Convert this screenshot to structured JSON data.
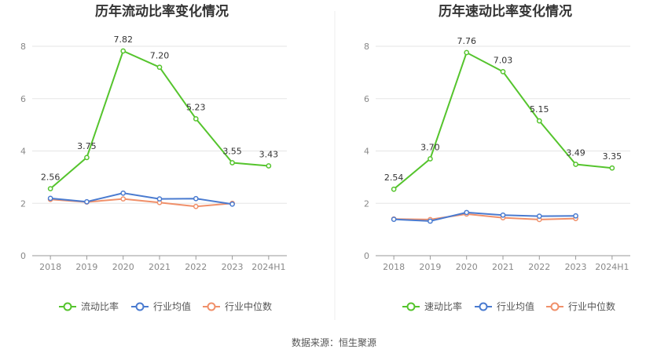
{
  "colors": {
    "series1": "#55c42d",
    "series2": "#4a7bd0",
    "series3": "#f0906a",
    "grid": "#e5e5e5",
    "axis": "#999999"
  },
  "source": "数据来源：恒生聚源",
  "chart_data": [
    {
      "type": "line",
      "title": "历年流动比率变化情况",
      "categories": [
        "2018",
        "2019",
        "2020",
        "2021",
        "2022",
        "2023",
        "2024H1"
      ],
      "ylim": [
        0,
        8
      ],
      "yticks": [
        0,
        2,
        4,
        6,
        8
      ],
      "grid": true,
      "legend_position": "bottom",
      "series": [
        {
          "name": "流动比率",
          "values": [
            2.56,
            3.75,
            7.82,
            7.2,
            5.23,
            3.55,
            3.43
          ],
          "labels": [
            "2.56",
            "3.75",
            "7.82",
            "7.20",
            "5.23",
            "3.55",
            "3.43"
          ],
          "color": "#55c42d"
        },
        {
          "name": "行业均值",
          "values": [
            2.19,
            2.06,
            2.39,
            2.17,
            2.18,
            1.97,
            null
          ],
          "color": "#4a7bd0"
        },
        {
          "name": "行业中位数",
          "values": [
            2.15,
            2.05,
            2.17,
            2.03,
            1.88,
            2.0,
            null
          ],
          "color": "#f0906a"
        }
      ]
    },
    {
      "type": "line",
      "title": "历年速动比率变化情况",
      "categories": [
        "2018",
        "2019",
        "2020",
        "2021",
        "2022",
        "2023",
        "2024H1"
      ],
      "ylim": [
        0,
        8
      ],
      "yticks": [
        0,
        2,
        4,
        6,
        8
      ],
      "grid": true,
      "legend_position": "bottom",
      "series": [
        {
          "name": "速动比率",
          "values": [
            2.54,
            3.7,
            7.76,
            7.03,
            5.15,
            3.49,
            3.35
          ],
          "labels": [
            "2.54",
            "3.70",
            "7.76",
            "7.03",
            "5.15",
            "3.49",
            "3.35"
          ],
          "color": "#55c42d"
        },
        {
          "name": "行业均值",
          "values": [
            1.39,
            1.32,
            1.65,
            1.55,
            1.51,
            1.52,
            null
          ],
          "color": "#4a7bd0"
        },
        {
          "name": "行业中位数",
          "values": [
            1.4,
            1.38,
            1.59,
            1.45,
            1.38,
            1.42,
            null
          ],
          "color": "#f0906a"
        }
      ]
    }
  ]
}
